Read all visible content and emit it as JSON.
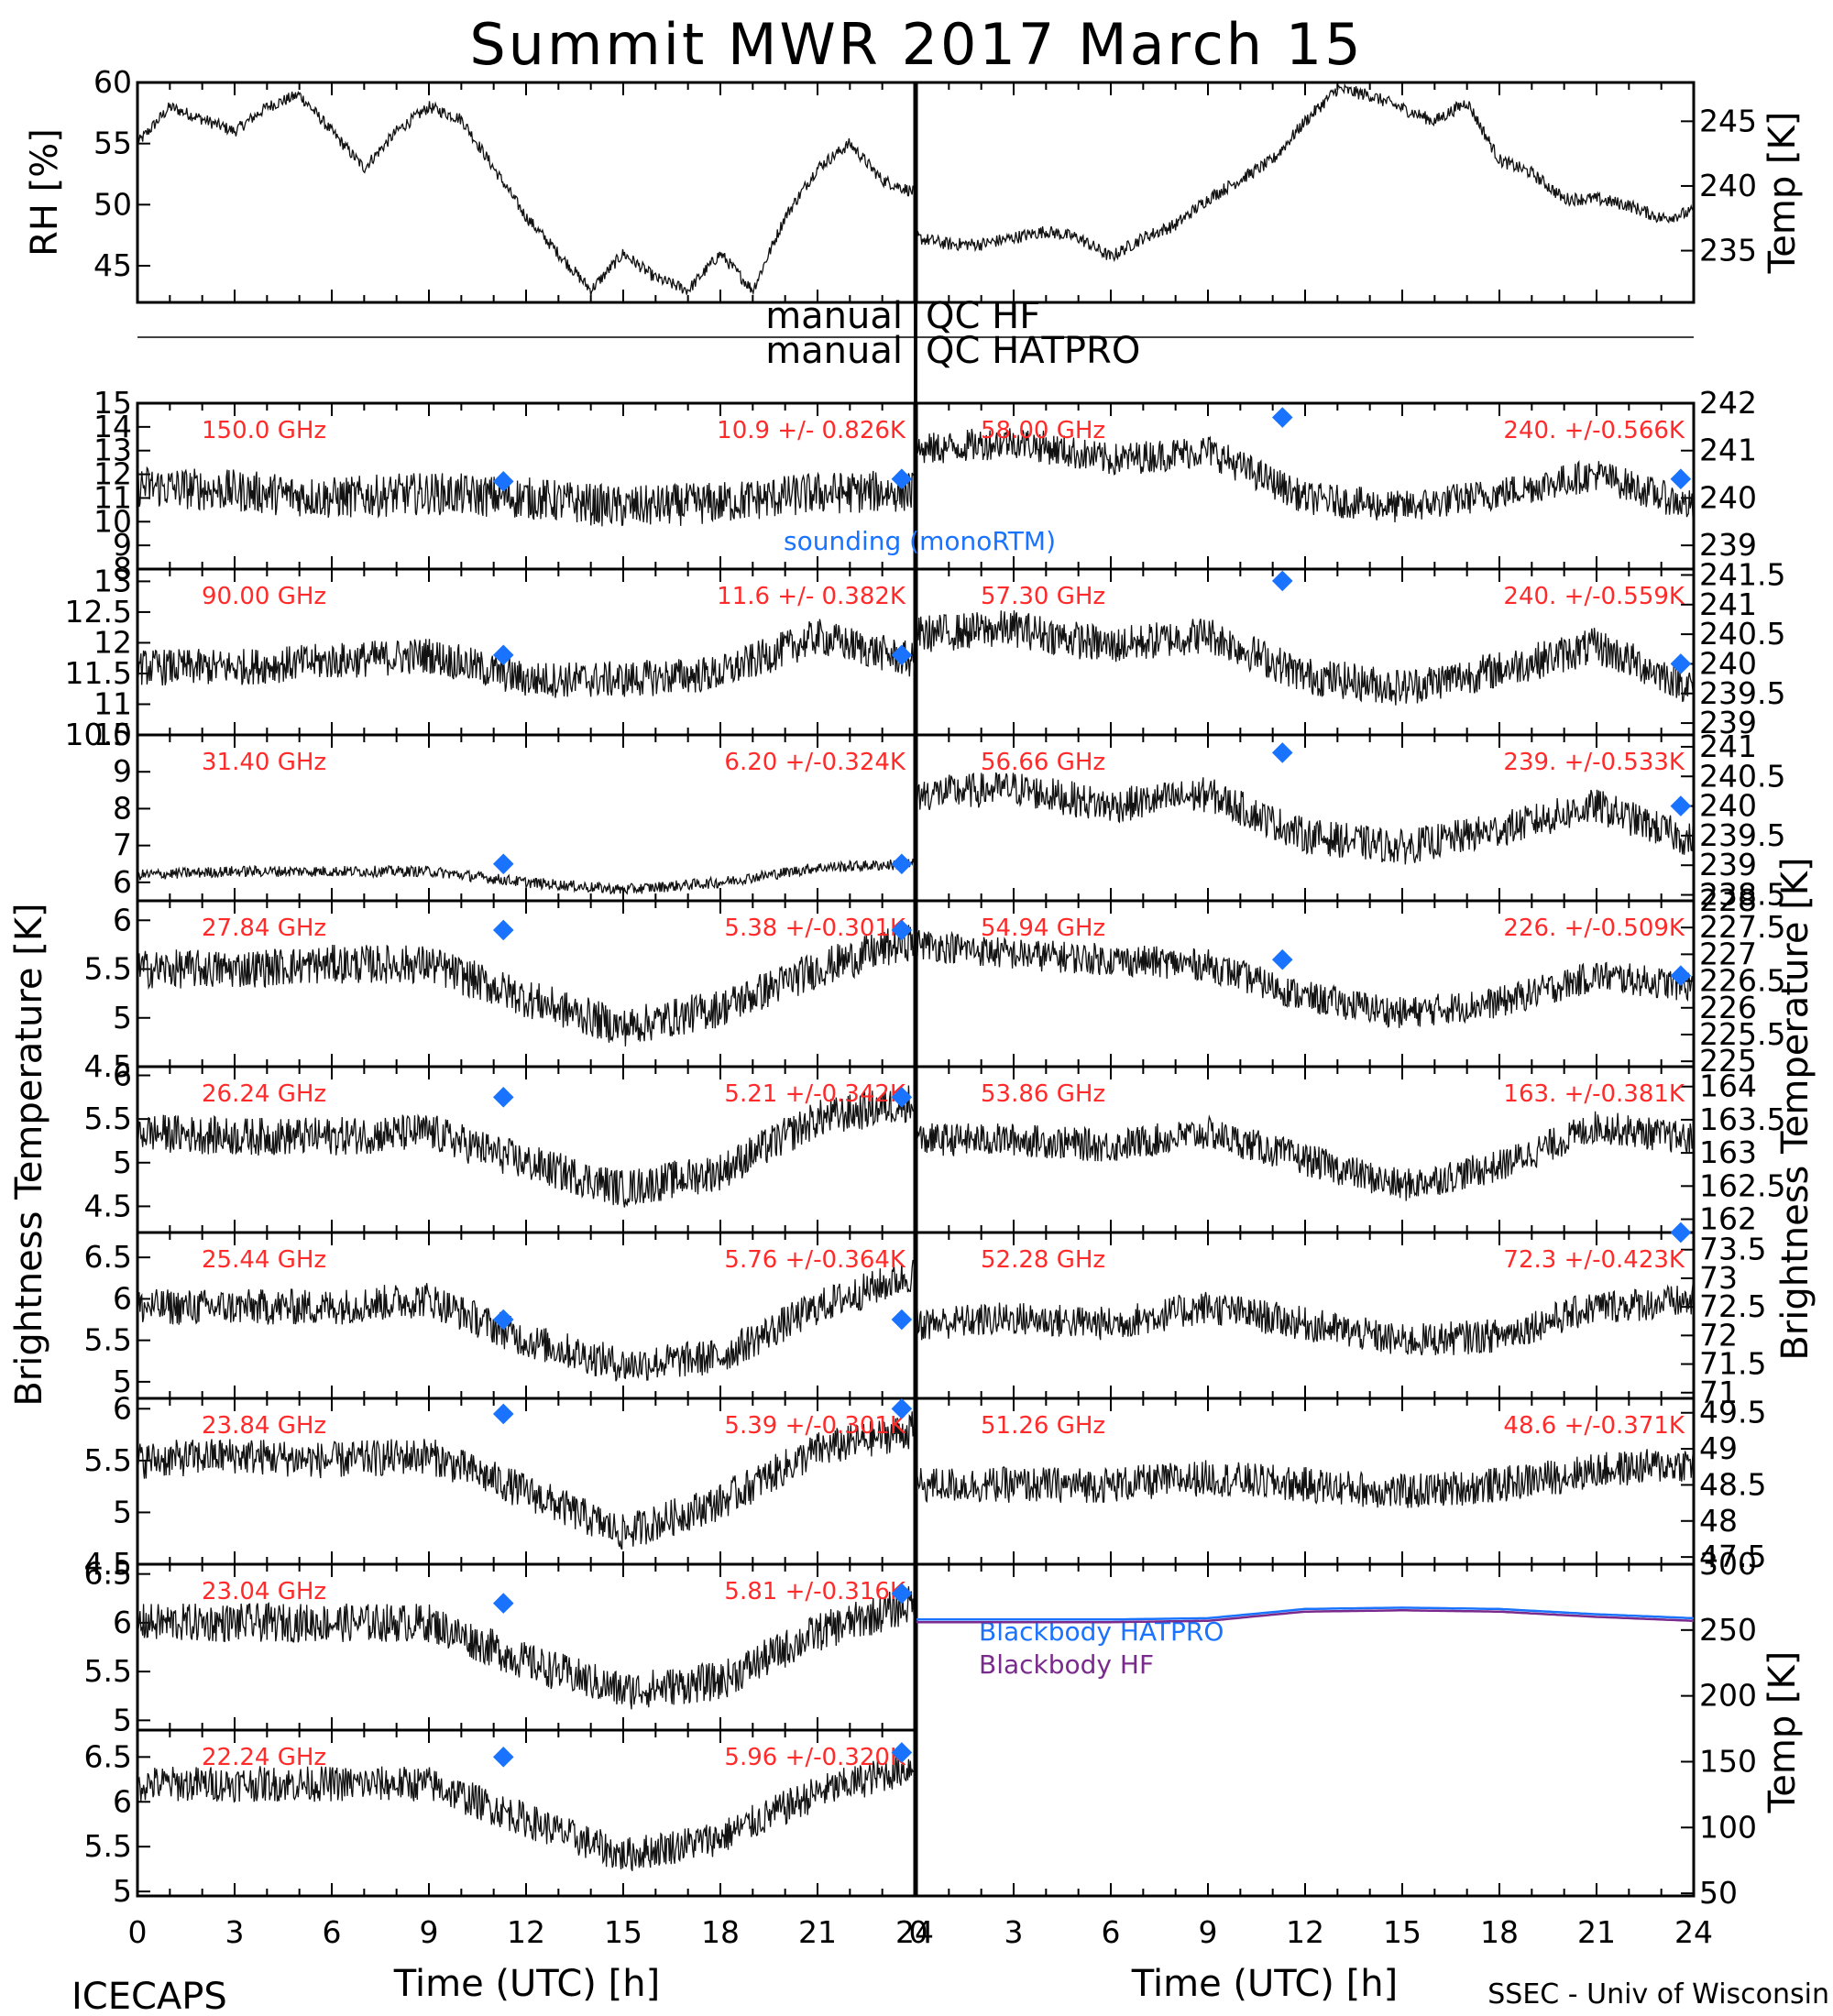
{
  "title": "Summit MWR 2017 March 15",
  "footer": {
    "left": "ICECAPS",
    "right": "SSEC - Univ of Wisconsin",
    "xlabel_left": "Time (UTC) [h]",
    "xlabel_right": "Time (UTC) [h]"
  },
  "qc": {
    "label1": "manual",
    "text1": "QC HF",
    "label2": "manual",
    "text2": "QC HATPRO"
  },
  "ylabel_left": "Brightness Temperature [K]",
  "ylabel_right": "Brightness Temperature [K]",
  "colors": {
    "red": "#ff2a2a",
    "blue": "#1a73ff",
    "purple": "#7a2a8c",
    "line": "#111111"
  },
  "chart_data": [
    {
      "type": "line",
      "id": "rh",
      "ylabel": "RH [%]",
      "xlim": [
        0,
        24
      ],
      "ylim": [
        42,
        60
      ],
      "yticks": [
        45,
        50,
        55,
        60
      ],
      "x": [
        0,
        1,
        2,
        3,
        4,
        5,
        6,
        7,
        8,
        9,
        10,
        11,
        12,
        13,
        14,
        15,
        16,
        17,
        18,
        19,
        20,
        21,
        22,
        23,
        24
      ],
      "values": [
        55,
        58,
        57,
        56,
        58,
        59,
        56,
        53,
        56,
        58,
        57,
        53,
        49,
        46,
        43,
        46,
        44,
        43,
        46,
        43,
        49,
        53,
        55,
        52,
        51
      ]
    },
    {
      "type": "line",
      "id": "temp",
      "ylabel": "Temp [K]",
      "xlim": [
        0,
        24
      ],
      "ylim": [
        231,
        248
      ],
      "yticks": [
        235,
        240,
        245
      ],
      "x": [
        0,
        1,
        2,
        3,
        4,
        5,
        6,
        7,
        8,
        9,
        10,
        11,
        12,
        13,
        14,
        15,
        16,
        17,
        18,
        19,
        20,
        21,
        22,
        23,
        24
      ],
      "values": [
        236,
        235.5,
        235.5,
        236,
        236.5,
        236,
        234.5,
        236,
        237,
        239,
        240.5,
        242,
        245,
        247.5,
        247,
        246,
        245,
        246.5,
        242,
        241,
        239,
        239,
        238.5,
        237.5,
        238
      ]
    },
    {
      "type": "line",
      "id": "L150",
      "label": "150.0 GHz",
      "stat": "10.9 +/- 0.826K",
      "ylim": [
        8,
        15
      ],
      "yticks": [
        8,
        9,
        10,
        11,
        12,
        13,
        14,
        15
      ],
      "x": [
        0,
        3,
        6,
        9,
        12,
        15,
        18,
        21,
        24
      ],
      "values": [
        11.5,
        11.3,
        11.0,
        11.2,
        11.0,
        10.6,
        10.8,
        11.2,
        11.3
      ],
      "noise": 0.9,
      "sounding": [
        [
          11.3,
          11.7
        ],
        [
          23.6,
          11.8
        ]
      ]
    },
    {
      "type": "line",
      "id": "L90",
      "label": "90.00 GHz",
      "stat": "11.6 +/- 0.382K",
      "ylim": [
        10.5,
        13.2
      ],
      "yticks": [
        10.5,
        11.0,
        11.5,
        12.0,
        12.5,
        13.0
      ],
      "x": [
        0,
        3,
        6,
        9,
        12,
        15,
        18,
        21,
        24
      ],
      "values": [
        11.6,
        11.6,
        11.7,
        11.8,
        11.4,
        11.4,
        11.5,
        12.1,
        11.7
      ],
      "noise": 0.3,
      "sounding": [
        [
          11.3,
          11.8
        ],
        [
          23.6,
          11.8
        ]
      ]
    },
    {
      "type": "line",
      "id": "L31",
      "label": "31.40 GHz",
      "stat": "6.20 +/-0.324K",
      "ylim": [
        5.5,
        10
      ],
      "yticks": [
        6,
        7,
        8,
        9,
        10
      ],
      "x": [
        0,
        3,
        6,
        9,
        12,
        15,
        18,
        21,
        24
      ],
      "values": [
        6.2,
        6.3,
        6.3,
        6.3,
        6.0,
        5.8,
        6.0,
        6.4,
        6.5
      ],
      "noise": 0.15,
      "sounding": [
        [
          11.3,
          6.5
        ],
        [
          23.6,
          6.5
        ]
      ]
    },
    {
      "type": "line",
      "id": "L2784",
      "label": "27.84 GHz",
      "stat": "5.38 +/-0.301K",
      "ylim": [
        4.5,
        6.2
      ],
      "yticks": [
        4.5,
        5.0,
        5.5,
        6.0
      ],
      "x": [
        0,
        3,
        6,
        9,
        12,
        15,
        18,
        21,
        24
      ],
      "values": [
        5.5,
        5.5,
        5.55,
        5.55,
        5.2,
        4.9,
        5.1,
        5.5,
        5.8
      ],
      "noise": 0.2,
      "sounding": [
        [
          11.3,
          5.9
        ],
        [
          23.6,
          5.9
        ]
      ]
    },
    {
      "type": "line",
      "id": "L2624",
      "label": "26.24 GHz",
      "stat": "5.21 +/-0.342K",
      "ylim": [
        4.2,
        6.1
      ],
      "yticks": [
        4.5,
        5.0,
        5.5,
        6.0
      ],
      "x": [
        0,
        3,
        6,
        9,
        12,
        15,
        18,
        21,
        24
      ],
      "values": [
        5.35,
        5.3,
        5.3,
        5.35,
        5.0,
        4.7,
        4.9,
        5.5,
        5.7
      ],
      "noise": 0.22,
      "sounding": [
        [
          11.3,
          5.75
        ],
        [
          23.6,
          5.75
        ]
      ]
    },
    {
      "type": "line",
      "id": "L2544",
      "label": "25.44 GHz",
      "stat": "5.76 +/-0.364K",
      "ylim": [
        4.8,
        6.8
      ],
      "yticks": [
        5.0,
        5.5,
        6.0,
        6.5
      ],
      "x": [
        0,
        3,
        6,
        9,
        12,
        15,
        18,
        21,
        24
      ],
      "values": [
        5.9,
        5.9,
        5.9,
        6.0,
        5.5,
        5.2,
        5.3,
        5.9,
        6.3
      ],
      "noise": 0.22,
      "sounding": [
        [
          11.3,
          5.75
        ],
        [
          23.6,
          5.75
        ]
      ]
    },
    {
      "type": "line",
      "id": "L2384",
      "label": "23.84 GHz",
      "stat": "5.39 +/-0.301K",
      "ylim": [
        4.5,
        6.1
      ],
      "yticks": [
        4.5,
        5.0,
        5.5,
        6.0
      ],
      "x": [
        0,
        3,
        6,
        9,
        12,
        15,
        18,
        21,
        24
      ],
      "values": [
        5.5,
        5.55,
        5.5,
        5.55,
        5.2,
        4.8,
        5.1,
        5.6,
        5.8
      ],
      "noise": 0.18,
      "sounding": [
        [
          11.3,
          5.95
        ],
        [
          23.6,
          6.0
        ]
      ]
    },
    {
      "type": "line",
      "id": "L2304",
      "label": "23.04 GHz",
      "stat": "5.81 +/-0.316K",
      "ylim": [
        4.9,
        6.6
      ],
      "yticks": [
        5.0,
        5.5,
        6.0,
        6.5
      ],
      "x": [
        0,
        3,
        6,
        9,
        12,
        15,
        18,
        21,
        24
      ],
      "values": [
        6.0,
        6.0,
        6.0,
        6.0,
        5.6,
        5.3,
        5.4,
        5.9,
        6.2
      ],
      "noise": 0.2,
      "sounding": [
        [
          11.3,
          6.2
        ],
        [
          23.6,
          6.3
        ]
      ]
    },
    {
      "type": "line",
      "id": "L2224",
      "label": "22.24 GHz",
      "stat": "5.96 +/-0.320K",
      "ylim": [
        4.95,
        6.8
      ],
      "yticks": [
        5.0,
        5.5,
        6.0,
        6.5
      ],
      "x": [
        0,
        3,
        6,
        9,
        12,
        15,
        18,
        21,
        24
      ],
      "values": [
        6.2,
        6.2,
        6.2,
        6.2,
        5.8,
        5.4,
        5.6,
        6.1,
        6.4
      ],
      "noise": 0.2,
      "sounding": [
        [
          11.3,
          6.5
        ],
        [
          23.6,
          6.55
        ]
      ]
    },
    {
      "type": "line",
      "id": "R58",
      "label": "58.00 GHz",
      "stat": "240. +/-0.566K",
      "ylim": [
        238.5,
        242
      ],
      "yticks": [
        239,
        240,
        241,
        242
      ],
      "x": [
        0,
        3,
        6,
        9,
        12,
        15,
        18,
        21,
        24
      ],
      "values": [
        241.0,
        241.2,
        240.8,
        241.0,
        240.0,
        239.8,
        240.1,
        240.5,
        239.8
      ],
      "noise": 0.35,
      "sounding": [
        [
          11.3,
          241.7
        ],
        [
          23.6,
          240.4
        ]
      ]
    },
    {
      "type": "line",
      "id": "R5730",
      "label": "57.30 GHz",
      "stat": "240. +/-0.559K",
      "ylim": [
        238.8,
        241.6
      ],
      "yticks": [
        239.0,
        239.5,
        240.0,
        240.5,
        241.0,
        241.5
      ],
      "x": [
        0,
        3,
        6,
        9,
        12,
        15,
        18,
        21,
        24
      ],
      "values": [
        240.5,
        240.6,
        240.3,
        240.5,
        239.8,
        239.6,
        239.9,
        240.3,
        239.6
      ],
      "noise": 0.32,
      "sounding": [
        [
          11.3,
          241.4
        ],
        [
          23.6,
          240.0
        ]
      ]
    },
    {
      "type": "line",
      "id": "R5666",
      "label": "56.66 GHz",
      "stat": "239. +/-0.533K",
      "ylim": [
        238.4,
        241.2
      ],
      "yticks": [
        238.5,
        239.0,
        239.5,
        240.0,
        240.5,
        241.0
      ],
      "x": [
        0,
        3,
        6,
        9,
        12,
        15,
        18,
        21,
        24
      ],
      "values": [
        240.2,
        240.3,
        240.0,
        240.2,
        239.5,
        239.3,
        239.6,
        240.0,
        239.4
      ],
      "noise": 0.3,
      "sounding": [
        [
          11.3,
          240.9
        ],
        [
          23.6,
          240.0
        ]
      ]
    },
    {
      "type": "line",
      "id": "R5494",
      "label": "54.94 GHz",
      "stat": "226. +/-0.509K",
      "ylim": [
        224.9,
        228
      ],
      "yticks": [
        225.0,
        225.5,
        226.0,
        226.5,
        227.0,
        227.5,
        228.0
      ],
      "x": [
        0,
        3,
        6,
        9,
        12,
        15,
        18,
        21,
        24
      ],
      "values": [
        227.2,
        227.0,
        226.9,
        226.8,
        226.2,
        225.9,
        226.1,
        226.6,
        226.4
      ],
      "noise": 0.3,
      "sounding": [
        [
          11.3,
          226.9
        ],
        [
          23.6,
          226.6
        ]
      ]
    },
    {
      "type": "line",
      "id": "R5386",
      "label": "53.86 GHz",
      "stat": "163. +/-0.381K",
      "ylim": [
        161.8,
        164.3
      ],
      "yticks": [
        162.0,
        162.5,
        163.0,
        163.5,
        164.0
      ],
      "x": [
        0,
        3,
        6,
        9,
        12,
        15,
        18,
        21,
        24
      ],
      "values": [
        163.2,
        163.2,
        163.1,
        163.3,
        162.9,
        162.5,
        162.8,
        163.4,
        163.2
      ],
      "noise": 0.25,
      "sounding": []
    },
    {
      "type": "line",
      "id": "R5228",
      "label": "52.28 GHz",
      "stat": "72.3 +/-0.423K",
      "ylim": [
        70.9,
        73.8
      ],
      "yticks": [
        71.0,
        71.5,
        72.0,
        72.5,
        73.0,
        73.5
      ],
      "x": [
        0,
        3,
        6,
        9,
        12,
        15,
        18,
        21,
        24
      ],
      "values": [
        72.2,
        72.3,
        72.2,
        72.5,
        72.2,
        71.9,
        72.0,
        72.5,
        72.6
      ],
      "noise": 0.3,
      "sounding": [
        [
          23.6,
          73.8
        ]
      ]
    },
    {
      "type": "line",
      "id": "R5126",
      "label": "51.26 GHz",
      "stat": "48.6 +/-0.371K",
      "ylim": [
        47.4,
        49.7
      ],
      "yticks": [
        47.5,
        48.0,
        48.5,
        49.0,
        49.5
      ],
      "x": [
        0,
        3,
        6,
        9,
        12,
        15,
        18,
        21,
        24
      ],
      "values": [
        48.5,
        48.5,
        48.5,
        48.6,
        48.5,
        48.4,
        48.5,
        48.7,
        48.8
      ],
      "noise": 0.25,
      "sounding": []
    },
    {
      "type": "line",
      "id": "BB",
      "ylabel": "Temp [K]",
      "ylim": [
        48,
        300
      ],
      "yticks": [
        50,
        100,
        150,
        200,
        250,
        300
      ],
      "x": [
        0,
        6,
        9,
        12,
        15,
        18,
        21,
        24
      ],
      "series": [
        {
          "name": "Blackbody HATPRO",
          "color": "#1a73ff",
          "values": [
            258,
            258,
            259,
            266,
            267,
            266,
            262,
            259
          ]
        },
        {
          "name": "Blackbody HF",
          "color": "#7a2a8c",
          "values": [
            256,
            256,
            257,
            264,
            265,
            264,
            260,
            257
          ]
        }
      ]
    }
  ],
  "sounding_label": "sounding (monoRTM)",
  "xticks": [
    0,
    3,
    6,
    9,
    12,
    15,
    18,
    21,
    24
  ]
}
